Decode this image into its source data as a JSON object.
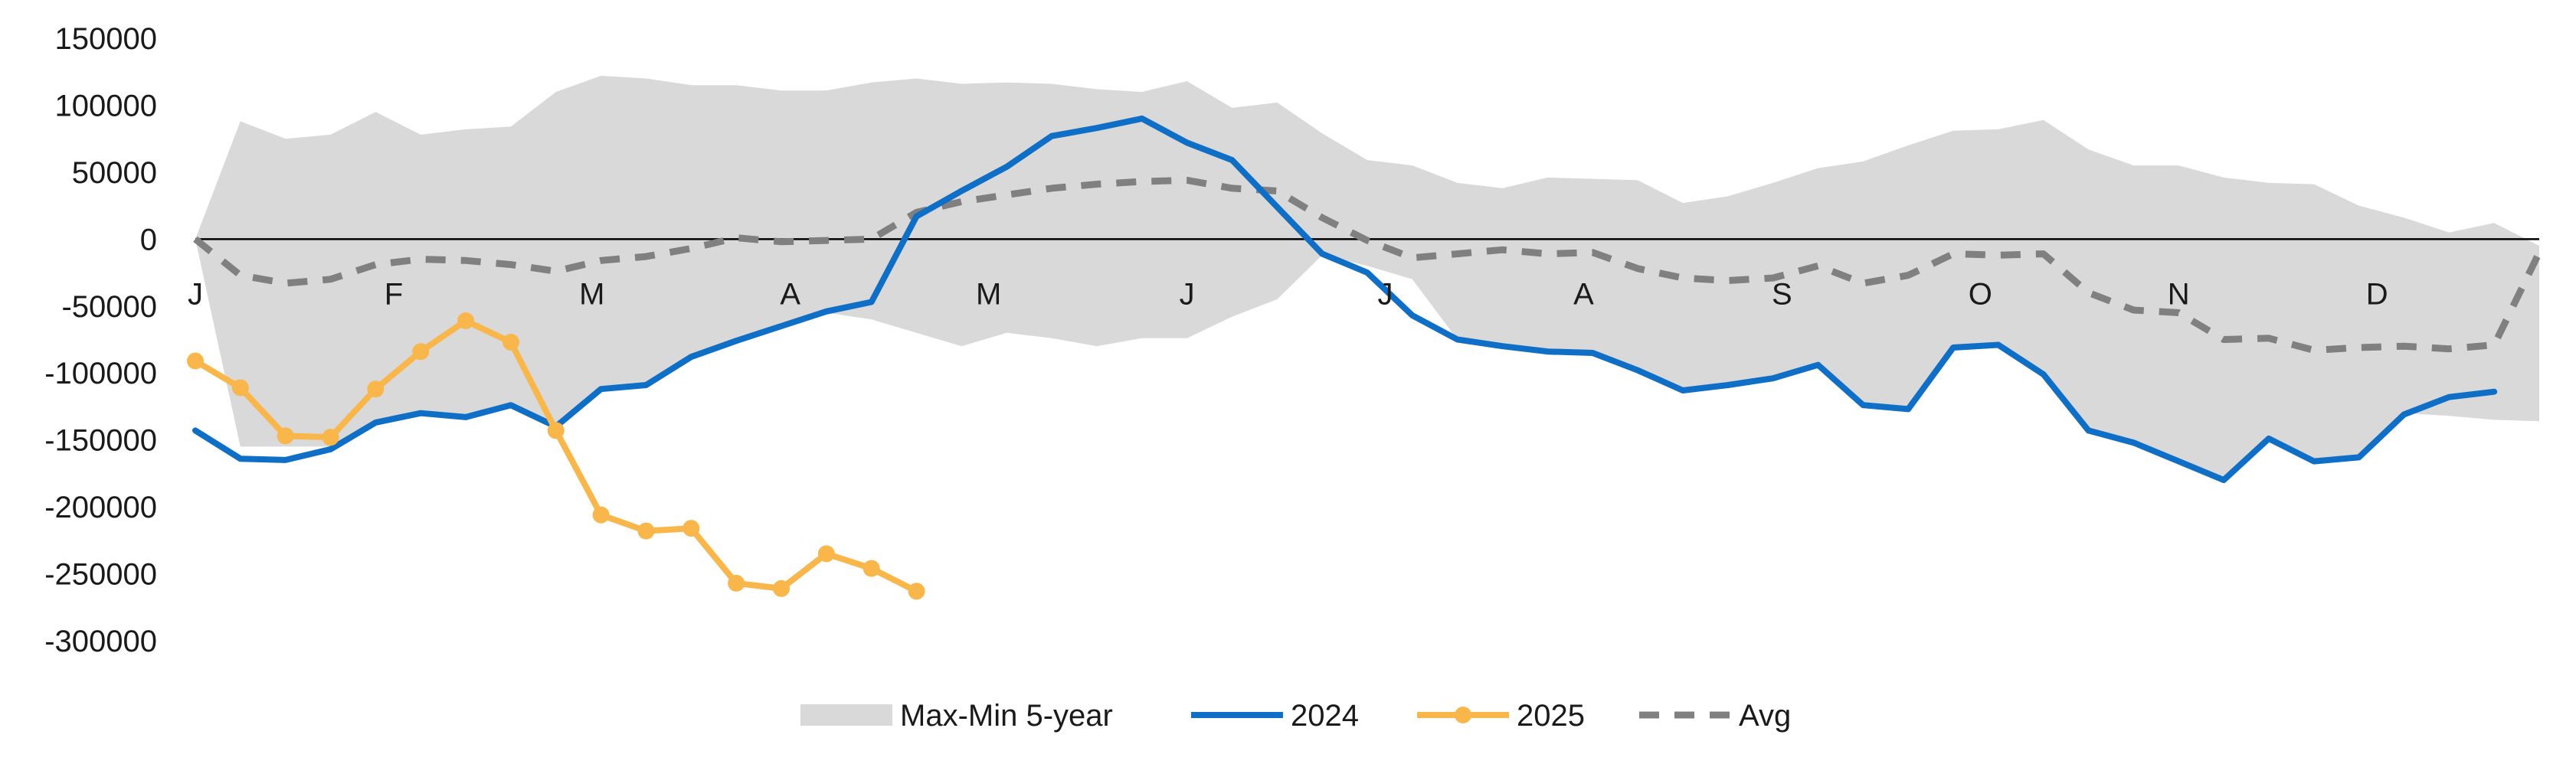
{
  "chart_data": {
    "type": "line",
    "title": "",
    "xlabel": "",
    "ylabel": "",
    "ylim": [
      -300000,
      150000
    ],
    "yticks": [
      150000,
      100000,
      50000,
      0,
      -50000,
      -100000,
      -150000,
      -200000,
      -250000,
      -300000
    ],
    "ytick_labels": [
      "150000",
      "100000",
      "50000",
      "0",
      "-50000",
      "-100000",
      "-150000",
      "-200000",
      "-250000",
      "-300000"
    ],
    "x_range": [
      0,
      52
    ],
    "month_ticks": [
      {
        "label": "J",
        "x": 0
      },
      {
        "label": "F",
        "x": 4.4
      },
      {
        "label": "M",
        "x": 8.8
      },
      {
        "label": "A",
        "x": 13.2
      },
      {
        "label": "M",
        "x": 17.6
      },
      {
        "label": "J",
        "x": 22.0
      },
      {
        "label": "J",
        "x": 26.4
      },
      {
        "label": "A",
        "x": 30.8
      },
      {
        "label": "S",
        "x": 35.2
      },
      {
        "label": "O",
        "x": 39.6
      },
      {
        "label": "N",
        "x": 44.0
      },
      {
        "label": "D",
        "x": 48.4
      }
    ],
    "grid": false,
    "legend_position": "bottom",
    "band": {
      "name": "Max-Min 5-year",
      "color": "#d9d9d9",
      "x": [
        0,
        1,
        2,
        3,
        4,
        5,
        6,
        7,
        8,
        9,
        10,
        11,
        12,
        13,
        14,
        15,
        16,
        17,
        18,
        19,
        20,
        21,
        22,
        23,
        24,
        25,
        26,
        27,
        28,
        29,
        30,
        31,
        32,
        33,
        34,
        35,
        36,
        37,
        38,
        39,
        40,
        41,
        42,
        43,
        44,
        45,
        46,
        47,
        48,
        49,
        50,
        51,
        52
      ],
      "upper": [
        0,
        88000,
        75000,
        78000,
        95000,
        78000,
        82000,
        84000,
        110000,
        122000,
        120000,
        115000,
        115000,
        111000,
        111000,
        117000,
        120000,
        116000,
        117000,
        116000,
        112000,
        110000,
        118000,
        98000,
        102000,
        79000,
        59000,
        55000,
        42000,
        38000,
        46000,
        45000,
        44000,
        27000,
        32000,
        42000,
        53000,
        58000,
        70000,
        81000,
        82000,
        89000,
        67000,
        55000,
        55000,
        46000,
        42000,
        41000,
        25000,
        16000,
        5000,
        12000,
        -5000
      ],
      "lower": [
        0,
        -155000,
        -155000,
        -155000,
        -135000,
        -130000,
        -133000,
        -125000,
        -140000,
        -112000,
        -108000,
        -88000,
        -78000,
        -65000,
        -55000,
        -60000,
        -70000,
        -80000,
        -70000,
        -74000,
        -80000,
        -74000,
        -74000,
        -58000,
        -45000,
        -12000,
        -20000,
        -30000,
        -75000,
        -80000,
        -84000,
        -85000,
        -98000,
        -112000,
        -108000,
        -103000,
        -93000,
        -123000,
        -126000,
        -80000,
        -78000,
        -98000,
        -142000,
        -150000,
        -164000,
        -180000,
        -148000,
        -164000,
        -162000,
        -130000,
        -132000,
        -135000,
        -136000
      ]
    },
    "series": [
      {
        "name": "2024",
        "color": "#0f6fc6",
        "dashed": false,
        "markers": false,
        "x": [
          0,
          1,
          2,
          3,
          4,
          5,
          6,
          7,
          8,
          9,
          10,
          11,
          12,
          13,
          14,
          15,
          16,
          17,
          18,
          19,
          20,
          21,
          22,
          23,
          24,
          25,
          26,
          27,
          28,
          29,
          30,
          31,
          32,
          33,
          34,
          35,
          36,
          37,
          38,
          39,
          40,
          41,
          42,
          43,
          44,
          45,
          46,
          47,
          48,
          49,
          50,
          51
        ],
        "values": [
          -143000,
          -164000,
          -165000,
          -157000,
          -137000,
          -130000,
          -133000,
          -124000,
          -140000,
          -112000,
          -109000,
          -88000,
          -76000,
          -65000,
          -54000,
          -47000,
          17000,
          36000,
          54000,
          77000,
          83000,
          90000,
          72000,
          59000,
          24000,
          -11000,
          -25000,
          -57000,
          -75000,
          -80000,
          -84000,
          -85000,
          -98000,
          -113000,
          -109000,
          -104000,
          -94000,
          -124000,
          -127000,
          -81000,
          -79000,
          -101000,
          -143000,
          -152000,
          -166000,
          -180000,
          -149000,
          -166000,
          -163000,
          -131000,
          -118000,
          -114000
        ]
      },
      {
        "name": "2025",
        "color": "#f9b64a",
        "dashed": false,
        "markers": true,
        "x": [
          0,
          1,
          2,
          3,
          4,
          5,
          6,
          7,
          8,
          9,
          10,
          11,
          12,
          13,
          14,
          15,
          16
        ],
        "values": [
          -91000,
          -111000,
          -147000,
          -148000,
          -112000,
          -84000,
          -61000,
          -77000,
          -143000,
          -206000,
          -218000,
          -216000,
          -257000,
          -261000,
          -235000,
          -246000,
          -263000
        ]
      },
      {
        "name": "Avg",
        "color": "#808080",
        "dashed": true,
        "markers": false,
        "x": [
          0,
          1,
          2,
          3,
          4,
          5,
          6,
          7,
          8,
          9,
          10,
          11,
          12,
          13,
          14,
          15,
          16,
          17,
          18,
          19,
          20,
          21,
          22,
          23,
          24,
          25,
          26,
          27,
          28,
          29,
          30,
          31,
          32,
          33,
          34,
          35,
          36,
          37,
          38,
          39,
          40,
          41,
          42,
          43,
          44,
          45,
          46,
          47,
          48,
          49,
          50,
          51,
          52
        ],
        "values": [
          0,
          -27000,
          -33000,
          -30000,
          -19000,
          -15000,
          -16000,
          -19000,
          -24000,
          -16000,
          -13000,
          -7000,
          1000,
          -2000,
          -1000,
          0,
          20000,
          28000,
          33000,
          38000,
          41000,
          43000,
          44000,
          38000,
          36000,
          16000,
          -1000,
          -14000,
          -11000,
          -8000,
          -11000,
          -10000,
          -22000,
          -29000,
          -31000,
          -29000,
          -20000,
          -33000,
          -27000,
          -11000,
          -12000,
          -11000,
          -40000,
          -53000,
          -55000,
          -75000,
          -74000,
          -83000,
          -81000,
          -80000,
          -82000,
          -79000,
          -10000
        ]
      }
    ],
    "legend": [
      {
        "label": "Max-Min 5-year",
        "kind": "band",
        "color": "#d9d9d9"
      },
      {
        "label": "2024",
        "kind": "line",
        "color": "#0f6fc6"
      },
      {
        "label": "2025",
        "kind": "line-marker",
        "color": "#f9b64a"
      },
      {
        "label": "Avg",
        "kind": "dashed",
        "color": "#808080"
      }
    ]
  }
}
